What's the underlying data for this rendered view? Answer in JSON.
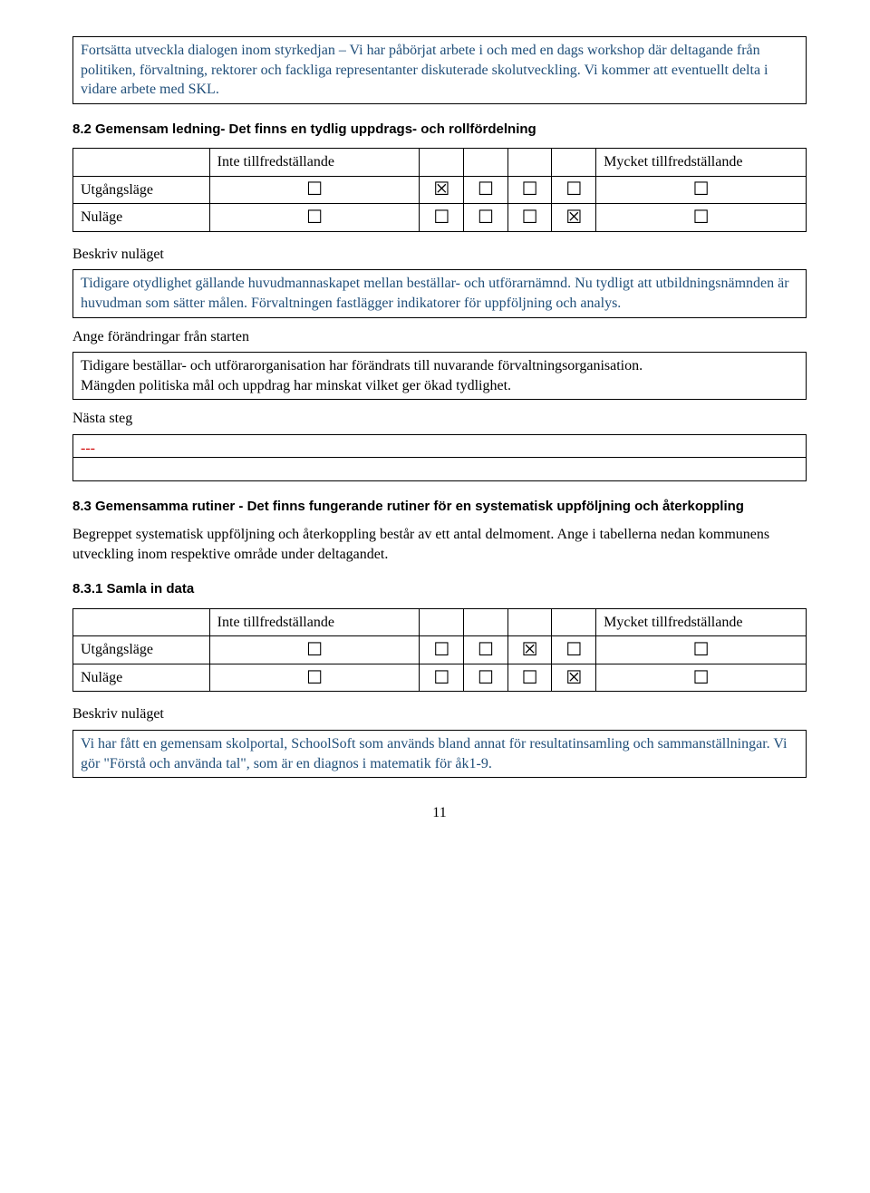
{
  "intro_box": "Fortsätta utveckla dialogen inom styrkedjan – Vi har påbörjat arbete i och med en dags workshop där deltagande från politiken, förvaltning, rektorer och fackliga representanter diskuterade skolutveckling. Vi kommer att eventuellt delta i vidare arbete med SKL.",
  "labels": {
    "inte": "Inte tillfredställande",
    "mycket": "Mycket tillfredställande",
    "utgangslage": "Utgångsläge",
    "nulage": "Nuläge",
    "beskriv_nulaget": "Beskriv nuläget",
    "ange_forandringar": "Ange förändringar från starten",
    "nasta_steg": "Nästa steg"
  },
  "glyphs": {
    "empty": "☐",
    "checked": "☒"
  },
  "section_8_2": {
    "title": "8.2 Gemensam ledning- Det finns en tydlig uppdrags- och rollfördelning",
    "rows": {
      "utgangslage": [
        false,
        true,
        false,
        false,
        false,
        false
      ],
      "nulage": [
        false,
        false,
        false,
        false,
        true,
        false
      ]
    },
    "beskriv_text": "Tidigare otydlighet gällande huvudmannaskapet mellan beställar- och utförarnämnd. Nu tydligt att utbildningsnämnden är huvudman som sätter målen. Förvaltningen fastlägger indikatorer för uppföljning och analys.",
    "forandringar_text": "Tidigare beställar- och utförarorganisation har förändrats till nuvarande förvaltningsorganisation.\nMängden politiska mål och uppdrag har minskat vilket ger ökad tydlighet.",
    "nasta_text": "---"
  },
  "section_8_3": {
    "title": "8.3 Gemensamma rutiner - Det finns fungerande rutiner för en systematisk uppföljning och återkoppling",
    "intro": "Begreppet systematisk uppföljning och återkoppling består av ett antal delmoment. Ange i tabellerna nedan kommunens utveckling inom respektive område under deltagandet."
  },
  "section_8_3_1": {
    "title": "8.3.1 Samla in data",
    "rows": {
      "utgangslage": [
        false,
        false,
        false,
        true,
        false,
        false
      ],
      "nulage": [
        false,
        false,
        false,
        false,
        true,
        false
      ]
    },
    "beskriv_text": "Vi har fått en gemensam skolportal, SchoolSoft som används bland annat för resultatinsamling och sammanställningar. Vi gör \"Förstå och använda tal\", som är en diagnos i matematik för åk1-9."
  },
  "pagenum": "11"
}
